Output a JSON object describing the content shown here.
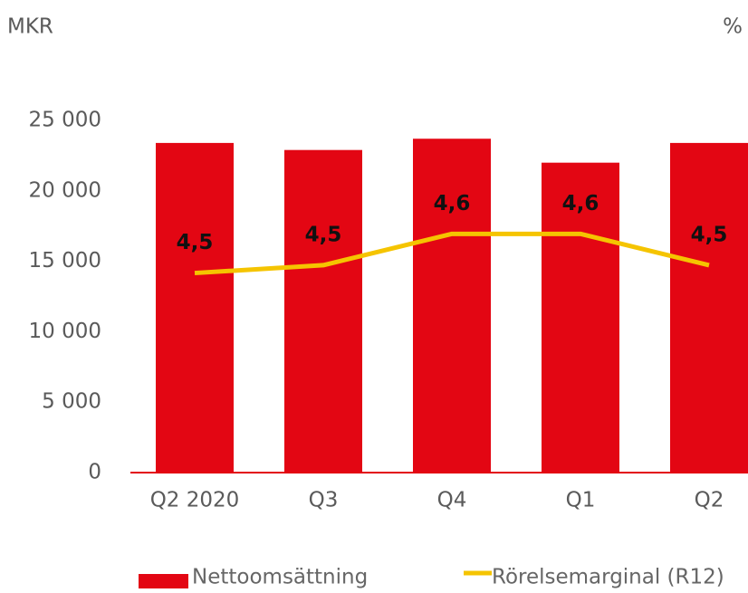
{
  "chart_data": {
    "type": "bar_line",
    "y_label": "MKR",
    "y2_label": "%",
    "categories": [
      "Q2 2020",
      "Q3",
      "Q4",
      "Q1",
      "Q2"
    ],
    "series": [
      {
        "name": "Nettoomsättning",
        "type": "bar",
        "color": "#e30613",
        "values": [
          23400,
          22900,
          23700,
          22000,
          23400
        ]
      },
      {
        "name": "Rörelsemarginal (R12)",
        "type": "line",
        "axis": "y2",
        "color": "#f5c400",
        "values": [
          4.51,
          4.53,
          4.61,
          4.61,
          4.53
        ],
        "value_labels": [
          "4,5",
          "4,5",
          "4,6",
          "4,6",
          "4,5"
        ]
      }
    ],
    "ylim": [
      0,
      25000
    ],
    "yticks": [
      0,
      {
        "value": 5000,
        "label": "5 000"
      },
      {
        "value": 10000,
        "label": "10 000"
      },
      {
        "value": 15000,
        "label": "15 000"
      },
      {
        "value": 20000,
        "label": "20 000"
      },
      {
        "value": 25000,
        "label": "25 000"
      }
    ],
    "y2lim": [
      4.0,
      4.9
    ],
    "legend": "bottom"
  }
}
